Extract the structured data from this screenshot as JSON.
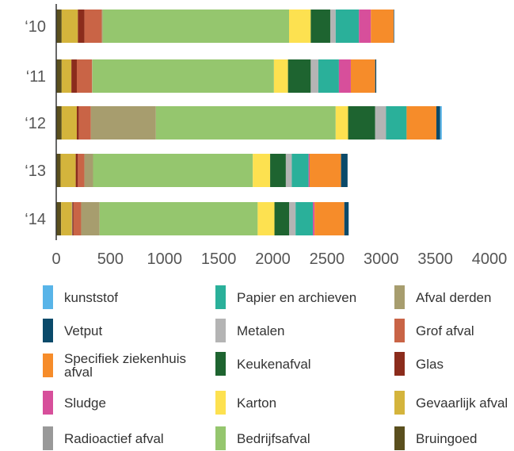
{
  "chart_data": {
    "type": "bar",
    "orientation": "horizontal",
    "stacked": true,
    "categories": [
      "‘10",
      "‘11",
      "‘12",
      "‘13",
      "‘14"
    ],
    "x_ticks": [
      "0",
      "500",
      "1000",
      "1500",
      "2000",
      "2500",
      "3000",
      "3500",
      "4000"
    ],
    "xlim": [
      0,
      4000
    ],
    "grid": false,
    "legend_position": "bottom",
    "series": [
      {
        "name": "Bruingoed",
        "color": "#5a4f1e",
        "values": [
          50,
          50,
          50,
          40,
          45
        ]
      },
      {
        "name": "Gevaarlijk afval",
        "color": "#d4b43c",
        "values": [
          150,
          90,
          140,
          140,
          100
        ]
      },
      {
        "name": "Radioactief afval",
        "color": "#999999",
        "values": [
          0,
          0,
          0,
          0,
          5
        ]
      },
      {
        "name": "Glas",
        "color": "#8b2c1c",
        "values": [
          60,
          50,
          20,
          20,
          10
        ]
      },
      {
        "name": "Grof afval",
        "color": "#c96446",
        "values": [
          160,
          140,
          110,
          60,
          70
        ]
      },
      {
        "name": "Afval derden",
        "color": "#a79d6e",
        "values": [
          10,
          5,
          600,
          80,
          170
        ]
      },
      {
        "name": "Bedrijfsafval",
        "color": "#95c66e",
        "values": [
          1720,
          1675,
          1660,
          1475,
          1460
        ]
      },
      {
        "name": "Karton",
        "color": "#fde150",
        "values": [
          200,
          130,
          115,
          160,
          155
        ]
      },
      {
        "name": "Keukenafval",
        "color": "#1e6430",
        "values": [
          180,
          210,
          250,
          145,
          135
        ]
      },
      {
        "name": "Metalen",
        "color": "#b4b4b4",
        "values": [
          50,
          70,
          100,
          55,
          60
        ]
      },
      {
        "name": "Papier en archieven",
        "color": "#2ab09a",
        "values": [
          215,
          190,
          190,
          155,
          160
        ]
      },
      {
        "name": "Sludge",
        "color": "#d74f9b",
        "values": [
          110,
          110,
          0,
          10,
          15
        ]
      },
      {
        "name": "Specifiek ziekenhuis afval",
        "color": "#f68c2a",
        "values": [
          210,
          225,
          275,
          290,
          275
        ]
      },
      {
        "name": "Vetput",
        "color": "#0a4a6a",
        "values": [
          5,
          10,
          35,
          60,
          40
        ]
      },
      {
        "name": "kunststof",
        "color": "#58b4e8",
        "values": [
          0,
          0,
          15,
          0,
          0
        ]
      }
    ]
  },
  "legend": [
    {
      "label": "kunststof",
      "color": "#58b4e8"
    },
    {
      "label": "Papier en archieven",
      "color": "#2ab09a"
    },
    {
      "label": "Afval derden",
      "color": "#a79d6e"
    },
    {
      "label": "Vetput",
      "color": "#0a4a6a"
    },
    {
      "label": "Metalen",
      "color": "#b4b4b4"
    },
    {
      "label": "Grof afval",
      "color": "#c96446"
    },
    {
      "label": "Specifiek ziekenhuis afval",
      "color": "#f68c2a"
    },
    {
      "label": "Keukenafval",
      "color": "#1e6430"
    },
    {
      "label": "Glas",
      "color": "#8b2c1c"
    },
    {
      "label": "Sludge",
      "color": "#d74f9b"
    },
    {
      "label": "Karton",
      "color": "#fde150"
    },
    {
      "label": "Gevaarlijk afval",
      "color": "#d4b43c"
    },
    {
      "label": "Radioactief afval",
      "color": "#999999"
    },
    {
      "label": "Bedrijfsafval",
      "color": "#95c66e"
    },
    {
      "label": "Bruingoed",
      "color": "#5a4f1e"
    }
  ]
}
